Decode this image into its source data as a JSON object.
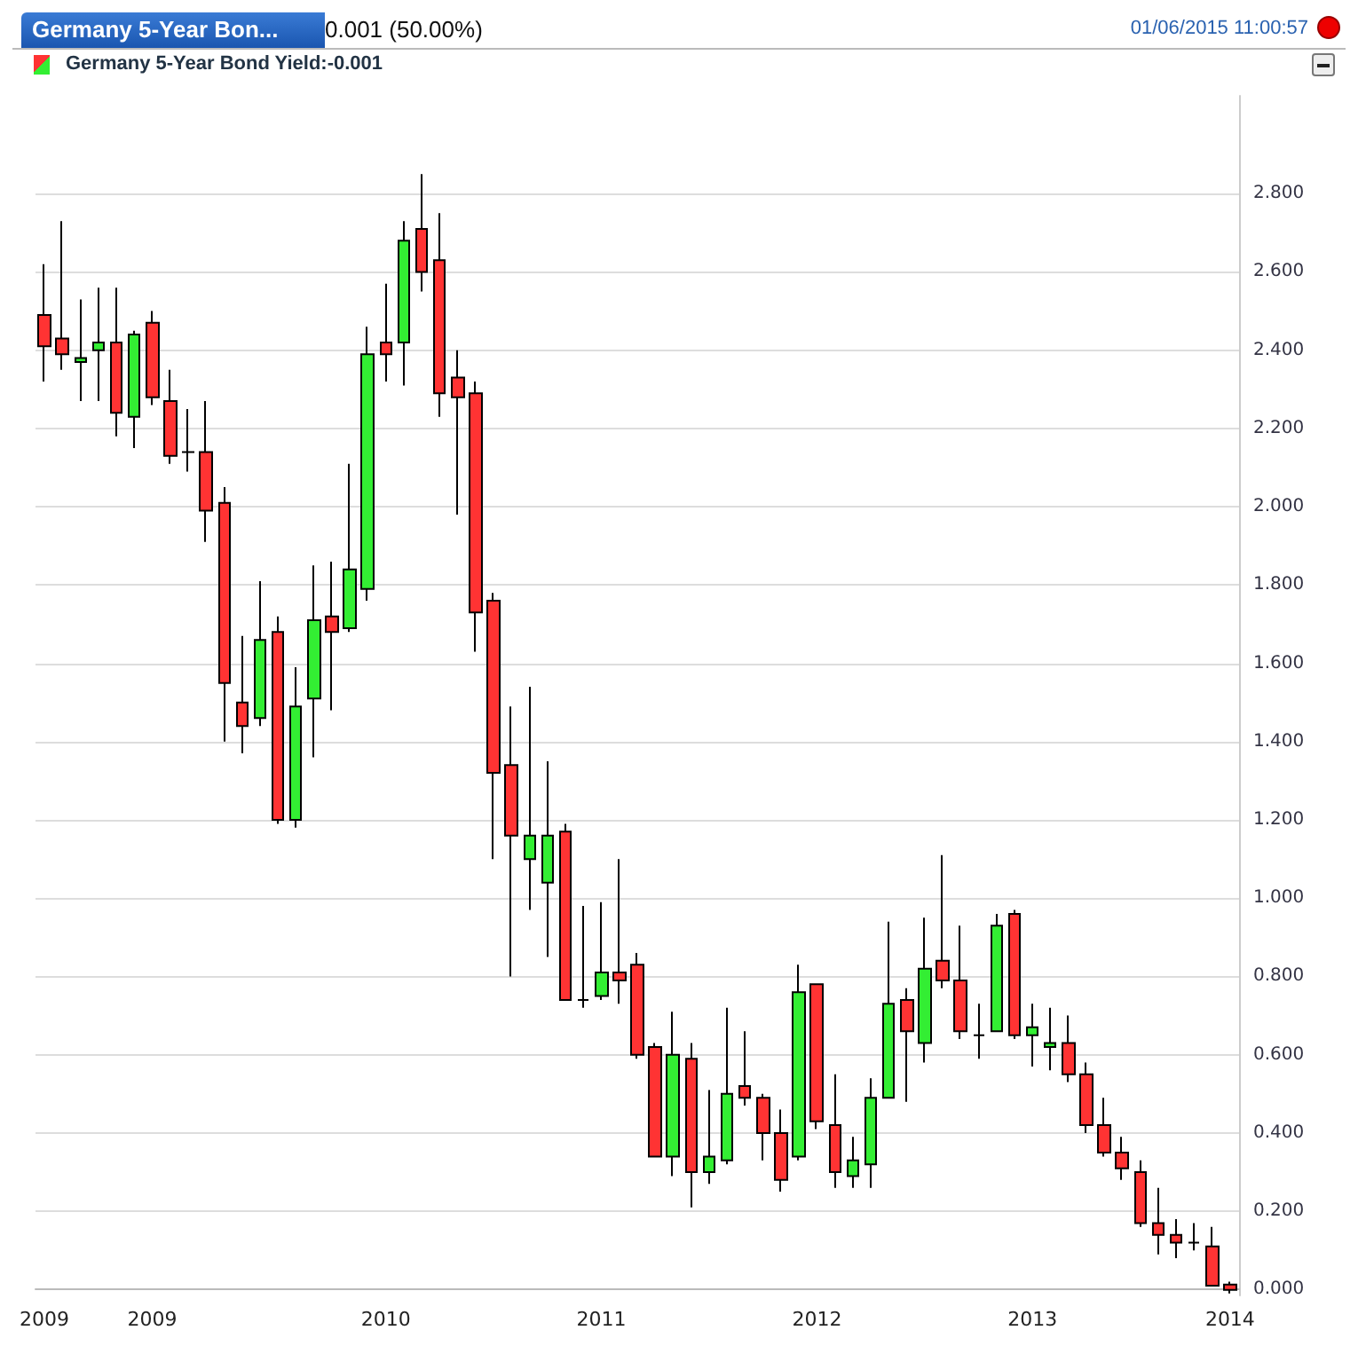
{
  "chart_data": {
    "type": "candlestick",
    "title": "Germany 5-Year Bon...",
    "subtitle": "Germany 5-Year Bond Yield:-0.001",
    "annotations": [
      "0.001 (50.00%)",
      "01/06/2015 11:00:57"
    ],
    "categories": [
      "2009",
      null,
      null,
      null,
      null,
      null,
      "2009",
      null,
      null,
      null,
      null,
      null,
      null,
      null,
      null,
      null,
      null,
      null,
      null,
      "2010",
      null,
      null,
      null,
      null,
      null,
      null,
      null,
      null,
      null,
      null,
      null,
      "2011",
      null,
      null,
      null,
      null,
      null,
      null,
      null,
      null,
      null,
      null,
      null,
      "2012",
      null,
      null,
      null,
      null,
      null,
      null,
      null,
      null,
      null,
      null,
      null,
      "2013",
      null,
      null,
      null,
      null,
      null,
      null,
      null,
      null,
      null,
      null,
      "2014"
    ],
    "ohlc": [
      [
        2.49,
        2.62,
        2.32,
        2.41
      ],
      [
        2.43,
        2.73,
        2.35,
        2.39
      ],
      [
        2.37,
        2.53,
        2.27,
        2.38
      ],
      [
        2.4,
        2.56,
        2.27,
        2.42
      ],
      [
        2.42,
        2.56,
        2.18,
        2.24
      ],
      [
        2.23,
        2.45,
        2.15,
        2.44
      ],
      [
        2.47,
        2.5,
        2.26,
        2.28
      ],
      [
        2.27,
        2.35,
        2.11,
        2.13
      ],
      [
        2.14,
        2.25,
        2.09,
        2.14
      ],
      [
        2.14,
        2.27,
        1.91,
        1.99
      ],
      [
        2.01,
        2.05,
        1.4,
        1.55
      ],
      [
        1.5,
        1.67,
        1.37,
        1.44
      ],
      [
        1.46,
        1.81,
        1.44,
        1.66
      ],
      [
        1.68,
        1.72,
        1.19,
        1.2
      ],
      [
        1.2,
        1.59,
        1.18,
        1.49
      ],
      [
        1.51,
        1.85,
        1.36,
        1.71
      ],
      [
        1.72,
        1.86,
        1.48,
        1.68
      ],
      [
        1.69,
        2.11,
        1.68,
        1.84
      ],
      [
        1.79,
        2.46,
        1.76,
        2.39
      ],
      [
        2.42,
        2.57,
        2.32,
        2.39
      ],
      [
        2.42,
        2.73,
        2.31,
        2.68
      ],
      [
        2.71,
        2.85,
        2.55,
        2.6
      ],
      [
        2.63,
        2.75,
        2.23,
        2.29
      ],
      [
        2.33,
        2.4,
        1.98,
        2.28
      ],
      [
        2.29,
        2.32,
        1.63,
        1.73
      ],
      [
        1.76,
        1.78,
        1.1,
        1.32
      ],
      [
        1.34,
        1.49,
        0.8,
        1.16
      ],
      [
        1.1,
        1.54,
        0.97,
        1.16
      ],
      [
        1.04,
        1.35,
        0.85,
        1.16
      ],
      [
        1.17,
        1.19,
        0.74,
        0.74
      ],
      [
        0.74,
        0.98,
        0.72,
        0.74
      ],
      [
        0.75,
        0.99,
        0.74,
        0.81
      ],
      [
        0.81,
        1.1,
        0.73,
        0.79
      ],
      [
        0.83,
        0.86,
        0.59,
        0.6
      ],
      [
        0.62,
        0.63,
        0.34,
        0.34
      ],
      [
        0.34,
        0.71,
        0.29,
        0.6
      ],
      [
        0.59,
        0.63,
        0.21,
        0.3
      ],
      [
        0.3,
        0.51,
        0.27,
        0.34
      ],
      [
        0.33,
        0.72,
        0.32,
        0.5
      ],
      [
        0.52,
        0.66,
        0.47,
        0.49
      ],
      [
        0.49,
        0.5,
        0.33,
        0.4
      ],
      [
        0.4,
        0.46,
        0.25,
        0.28
      ],
      [
        0.34,
        0.83,
        0.33,
        0.76
      ],
      [
        0.78,
        0.78,
        0.41,
        0.43
      ],
      [
        0.42,
        0.55,
        0.26,
        0.3
      ],
      [
        0.29,
        0.39,
        0.26,
        0.33
      ],
      [
        0.32,
        0.54,
        0.26,
        0.49
      ],
      [
        0.49,
        0.94,
        0.49,
        0.73
      ],
      [
        0.74,
        0.77,
        0.48,
        0.66
      ],
      [
        0.63,
        0.95,
        0.58,
        0.82
      ],
      [
        0.84,
        1.11,
        0.77,
        0.79
      ],
      [
        0.79,
        0.93,
        0.64,
        0.66
      ],
      [
        0.65,
        0.73,
        0.59,
        0.65
      ],
      [
        0.66,
        0.96,
        0.66,
        0.93
      ],
      [
        0.96,
        0.97,
        0.64,
        0.65
      ],
      [
        0.65,
        0.73,
        0.57,
        0.67
      ],
      [
        0.62,
        0.72,
        0.56,
        0.63
      ],
      [
        0.63,
        0.7,
        0.53,
        0.55
      ],
      [
        0.55,
        0.58,
        0.4,
        0.42
      ],
      [
        0.42,
        0.49,
        0.34,
        0.35
      ],
      [
        0.35,
        0.39,
        0.28,
        0.31
      ],
      [
        0.3,
        0.33,
        0.16,
        0.17
      ],
      [
        0.17,
        0.26,
        0.09,
        0.14
      ],
      [
        0.14,
        0.18,
        0.08,
        0.12
      ],
      [
        0.12,
        0.17,
        0.1,
        0.12
      ],
      [
        0.11,
        0.16,
        0.01,
        0.01
      ],
      [
        0.013,
        0.02,
        -0.01,
        -0.001
      ]
    ],
    "colors": [
      "#ff3333",
      "#ff3333",
      "#33ee33",
      "#33ee33",
      "#ff3333",
      "#33ee33",
      "#ff3333",
      "#ff3333",
      "#000000",
      "#ff3333",
      "#ff3333",
      "#ff3333",
      "#33ee33",
      "#ff3333",
      "#33ee33",
      "#33ee33",
      "#ff3333",
      "#33ee33",
      "#33ee33",
      "#ff3333",
      "#33ee33",
      "#ff3333",
      "#ff3333",
      "#ff3333",
      "#ff3333",
      "#ff3333",
      "#ff3333",
      "#33ee33",
      "#33ee33",
      "#ff3333",
      "#000000",
      "#33ee33",
      "#ff3333",
      "#ff3333",
      "#ff3333",
      "#33ee33",
      "#ff3333",
      "#33ee33",
      "#33ee33",
      "#ff3333",
      "#ff3333",
      "#ff3333",
      "#33ee33",
      "#ff3333",
      "#ff3333",
      "#33ee33",
      "#33ee33",
      "#33ee33",
      "#ff3333",
      "#33ee33",
      "#ff3333",
      "#ff3333",
      "#000000",
      "#33ee33",
      "#ff3333",
      "#33ee33",
      "#33ee33",
      "#ff3333",
      "#ff3333",
      "#ff3333",
      "#ff3333",
      "#ff3333",
      "#ff3333",
      "#ff3333",
      "#000000",
      "#ff3333",
      "#ff3333"
    ],
    "ylim": [
      -0.015,
      3.05
    ],
    "yticks": [
      {
        "value": 0,
        "label": "0.000"
      },
      {
        "value": 0.2,
        "label": "0.200"
      },
      {
        "value": 0.4,
        "label": "0.400"
      },
      {
        "value": 0.6,
        "label": "0.600"
      },
      {
        "value": 0.8,
        "label": "0.800"
      },
      {
        "value": 1,
        "label": "1.000"
      },
      {
        "value": 1.2,
        "label": "1.200"
      },
      {
        "value": 1.4,
        "label": "1.400"
      },
      {
        "value": 1.6,
        "label": "1.600"
      },
      {
        "value": 1.8,
        "label": "1.800"
      },
      {
        "value": 2,
        "label": "2.000"
      },
      {
        "value": 2.2,
        "label": "2.200"
      },
      {
        "value": 2.4,
        "label": "2.400"
      },
      {
        "value": 2.6,
        "label": "2.600"
      },
      {
        "value": 2.8,
        "label": "2.800"
      }
    ],
    "grid": "y"
  }
}
